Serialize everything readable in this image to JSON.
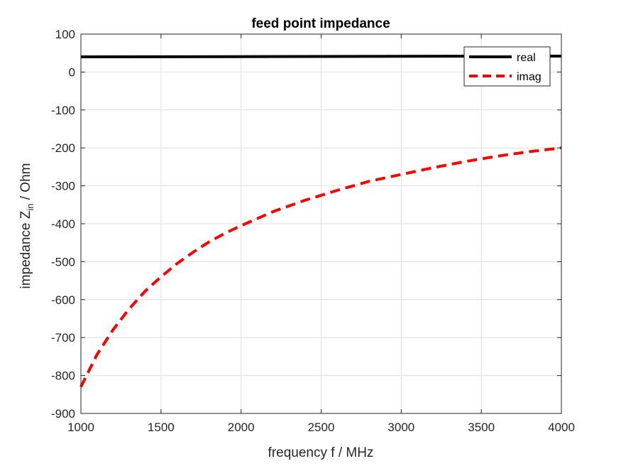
{
  "chart_data": {
    "type": "line",
    "title": "feed point impedance",
    "xlabel": "frequency f / MHz",
    "ylabel_main": "impedance Z",
    "ylabel_sub": "in",
    "ylabel_tail": " / Ohm",
    "xlim": [
      1000,
      4000
    ],
    "ylim": [
      -900,
      100
    ],
    "xticks": [
      1000,
      1500,
      2000,
      2500,
      3000,
      3500,
      4000
    ],
    "yticks": [
      -900,
      -800,
      -700,
      -600,
      -500,
      -400,
      -300,
      -200,
      -100,
      0,
      100
    ],
    "grid": true,
    "legend_location": "top-right",
    "series": [
      {
        "name": "real",
        "color": "#000000",
        "style": "solid",
        "x": [
          1000,
          1500,
          2000,
          2500,
          3000,
          3500,
          4000
        ],
        "y": [
          40,
          40.3,
          40.6,
          41,
          41.4,
          41.7,
          42
        ]
      },
      {
        "name": "imag",
        "color": "#ff0000",
        "style": "dashed",
        "x": [
          1000,
          1100,
          1200,
          1300,
          1400,
          1500,
          1600,
          1700,
          1800,
          1900,
          2000,
          2200,
          2400,
          2600,
          2800,
          3000,
          3200,
          3400,
          3600,
          3800,
          4000
        ],
        "y": [
          -830,
          -745,
          -680,
          -625,
          -578,
          -540,
          -505,
          -475,
          -448,
          -425,
          -405,
          -368,
          -338,
          -312,
          -288,
          -270,
          -252,
          -236,
          -222,
          -210,
          -200
        ]
      }
    ]
  }
}
